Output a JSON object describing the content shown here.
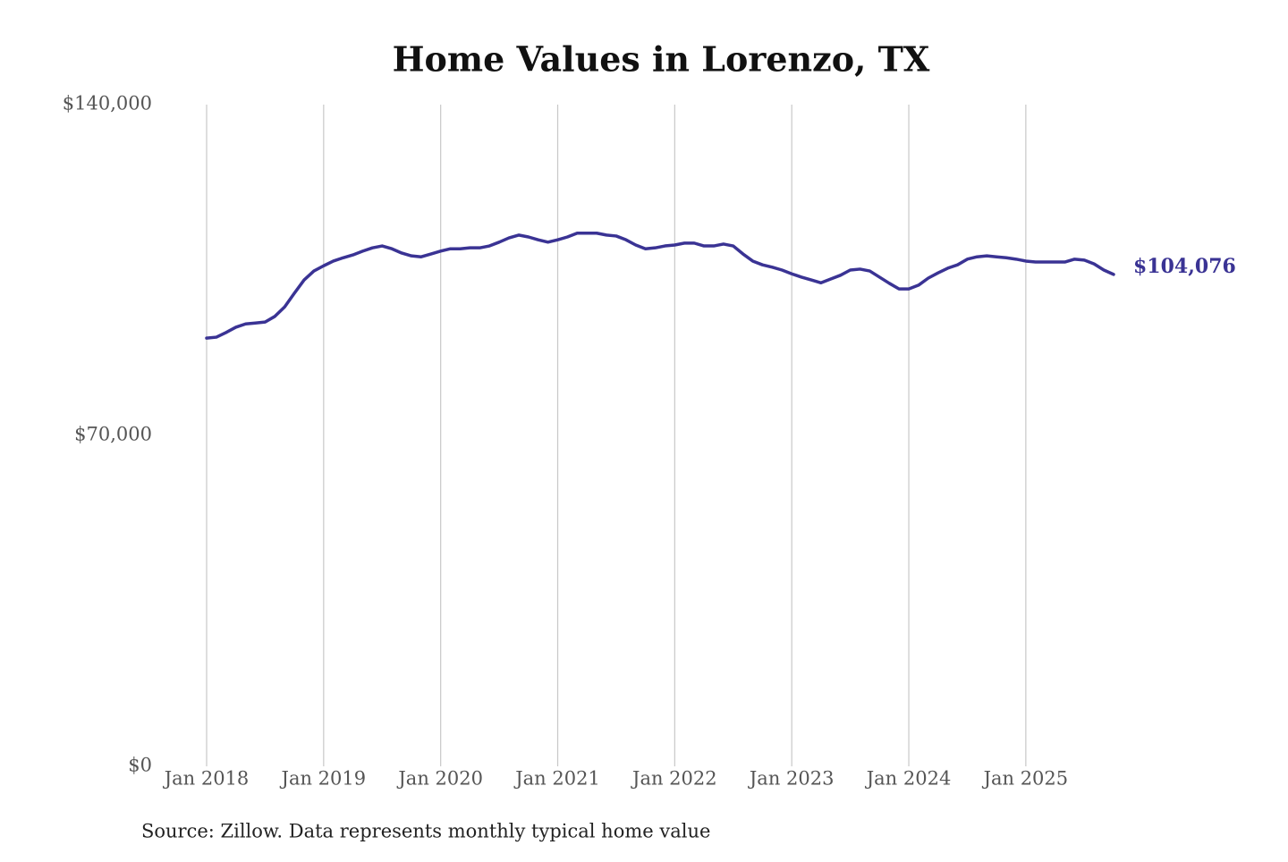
{
  "chart_data": {
    "type": "line",
    "title": "Home Values in Lorenzo, TX",
    "source": "Source: Zillow. Data represents monthly typical home value",
    "x": [
      "2018-01",
      "2018-02",
      "2018-03",
      "2018-04",
      "2018-05",
      "2018-06",
      "2018-07",
      "2018-08",
      "2018-09",
      "2018-10",
      "2018-11",
      "2018-12",
      "2019-01",
      "2019-02",
      "2019-03",
      "2019-04",
      "2019-05",
      "2019-06",
      "2019-07",
      "2019-08",
      "2019-09",
      "2019-10",
      "2019-11",
      "2019-12",
      "2020-01",
      "2020-02",
      "2020-03",
      "2020-04",
      "2020-05",
      "2020-06",
      "2020-07",
      "2020-08",
      "2020-09",
      "2020-10",
      "2020-11",
      "2020-12",
      "2021-01",
      "2021-02",
      "2021-03",
      "2021-04",
      "2021-05",
      "2021-06",
      "2021-07",
      "2021-08",
      "2021-09",
      "2021-10",
      "2021-11",
      "2021-12",
      "2022-01",
      "2022-02",
      "2022-03",
      "2022-04",
      "2022-05",
      "2022-06",
      "2022-07",
      "2022-08",
      "2022-09",
      "2022-10",
      "2022-11",
      "2022-12",
      "2023-01",
      "2023-02",
      "2023-03",
      "2023-04",
      "2023-05",
      "2023-06",
      "2023-07",
      "2023-08",
      "2023-09",
      "2023-10",
      "2023-11",
      "2023-12",
      "2024-01",
      "2024-02",
      "2024-03",
      "2024-04",
      "2024-05",
      "2024-06",
      "2024-07",
      "2024-08",
      "2024-09",
      "2024-10",
      "2024-11",
      "2024-12",
      "2025-01",
      "2025-02",
      "2025-03",
      "2025-04",
      "2025-05",
      "2025-06",
      "2025-07",
      "2025-08",
      "2025-09",
      "2025-10"
    ],
    "series": [
      {
        "name": "Typical home value",
        "color": "#3a3394",
        "values": [
          90600,
          90800,
          91800,
          92900,
          93600,
          93800,
          94000,
          95200,
          97200,
          100100,
          102900,
          104800,
          105900,
          106900,
          107600,
          108200,
          109000,
          109700,
          110100,
          109500,
          108600,
          108000,
          107800,
          108400,
          109000,
          109500,
          109500,
          109700,
          109700,
          110100,
          110900,
          111800,
          112400,
          112000,
          111400,
          110900,
          111400,
          112000,
          112800,
          112800,
          112800,
          112400,
          112200,
          111400,
          110300,
          109500,
          109700,
          110100,
          110300,
          110700,
          110700,
          110100,
          110100,
          110500,
          110100,
          108400,
          106900,
          106100,
          105600,
          105000,
          104200,
          103500,
          102900,
          102300,
          103100,
          103900,
          105000,
          105200,
          104800,
          103500,
          102200,
          101000,
          101000,
          101800,
          103300,
          104400,
          105400,
          106100,
          107300,
          107800,
          108000,
          107800,
          107600,
          107300,
          106900,
          106700,
          106700,
          106700,
          106700,
          107300,
          107100,
          106300,
          105000,
          104076
        ],
        "value_labels": [
          null,
          null,
          null,
          null,
          null,
          null,
          null,
          null,
          null,
          null,
          null,
          null,
          null,
          null,
          null,
          null,
          null,
          null,
          null,
          null,
          null,
          null,
          null,
          null,
          null,
          null,
          null,
          null,
          null,
          null,
          null,
          null,
          null,
          null,
          null,
          null,
          null,
          null,
          null,
          null,
          null,
          null,
          null,
          null,
          null,
          null,
          null,
          null,
          null,
          null,
          null,
          null,
          null,
          null,
          null,
          null,
          null,
          null,
          null,
          null,
          null,
          null,
          null,
          null,
          null,
          null,
          null,
          null,
          null,
          null,
          null,
          null,
          null,
          null,
          null,
          null,
          null,
          null,
          null,
          null,
          null,
          null,
          null,
          null,
          null,
          null,
          null,
          null,
          null,
          null,
          null,
          null,
          null,
          "$104,076"
        ]
      }
    ],
    "xlim": [
      "2018-01",
      "2025-10"
    ],
    "xticks": [
      {
        "value": "2018-01",
        "label": "Jan 2018"
      },
      {
        "value": "2019-01",
        "label": "Jan 2019"
      },
      {
        "value": "2020-01",
        "label": "Jan 2020"
      },
      {
        "value": "2021-01",
        "label": "Jan 2021"
      },
      {
        "value": "2022-01",
        "label": "Jan 2022"
      },
      {
        "value": "2023-01",
        "label": "Jan 2023"
      },
      {
        "value": "2024-01",
        "label": "Jan 2024"
      },
      {
        "value": "2025-01",
        "label": "Jan 2025"
      }
    ],
    "ylim": [
      0,
      140000
    ],
    "yticks": [
      {
        "value": 0,
        "label": "$0"
      },
      {
        "value": 70000,
        "label": "$70,000"
      },
      {
        "value": 140000,
        "label": "$140,000"
      }
    ],
    "grid": "x"
  }
}
